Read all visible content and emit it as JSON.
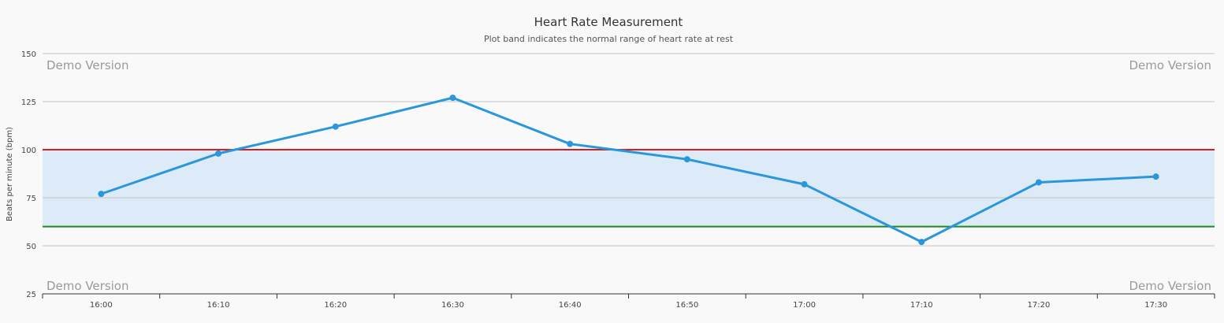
{
  "chart_data": {
    "type": "line",
    "title": "Heart Rate Measurement",
    "subtitle": "Plot band indicates the normal range of heart rate at rest",
    "xlabel": "",
    "ylabel": "Beats per minute (bpm)",
    "categories": [
      "16:00",
      "16:10",
      "16:20",
      "16:30",
      "16:40",
      "16:50",
      "17:00",
      "17:10",
      "17:20",
      "17:30"
    ],
    "series": [
      {
        "values": [
          77,
          98,
          112,
          127,
          103,
          95,
          82,
          52,
          83,
          86
        ],
        "color": "#2a97dd"
      }
    ],
    "ylim": [
      25,
      150
    ],
    "yticks": [
      25,
      50,
      75,
      100,
      125,
      150
    ],
    "grid": true,
    "plot_band": {
      "from": 60,
      "to": 100,
      "color": "#dcebf7"
    },
    "plot_lines": [
      {
        "value": 100,
        "color": "#d22020"
      },
      {
        "value": 60,
        "color": "#1f8a1f"
      }
    ]
  },
  "watermark": {
    "top_left": "Demo Version",
    "top_right": "Demo Version",
    "bottom_left": "Demo Version",
    "bottom_right": "Demo Version"
  }
}
